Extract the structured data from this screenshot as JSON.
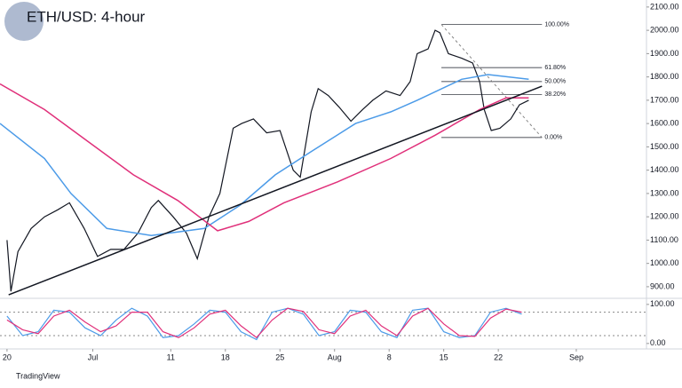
{
  "chart_data": {
    "type": "line",
    "title": "ETH/USD: 4-hour",
    "footer": "TradingView",
    "xlim": [
      -0.9,
      82
    ],
    "ylim": [
      854,
      2130
    ],
    "xticks": [
      {
        "value": 0,
        "label": "20"
      },
      {
        "value": 11,
        "label": "Jul"
      },
      {
        "value": 21,
        "label": "11"
      },
      {
        "value": 28,
        "label": "18"
      },
      {
        "value": 35,
        "label": "25"
      },
      {
        "value": 42,
        "label": "Aug"
      },
      {
        "value": 49,
        "label": "8"
      },
      {
        "value": 56,
        "label": "15"
      },
      {
        "value": 63,
        "label": "22"
      },
      {
        "value": 73,
        "label": "Sep"
      }
    ],
    "yticks": [
      {
        "value": 2100,
        "label": "2100.00"
      },
      {
        "value": 2000,
        "label": "2000.00"
      },
      {
        "value": 1900,
        "label": "1900.00"
      },
      {
        "value": 1800,
        "label": "1800.00"
      },
      {
        "value": 1700,
        "label": "1700.00"
      },
      {
        "value": 1600,
        "label": "1600.00"
      },
      {
        "value": 1500,
        "label": "1500.00"
      },
      {
        "value": 1400,
        "label": "1400.00"
      },
      {
        "value": 1300,
        "label": "1300.00"
      },
      {
        "value": 1200,
        "label": "1200.00"
      },
      {
        "value": 1100,
        "label": "1100.00"
      },
      {
        "value": 1000,
        "label": "1000.00"
      },
      {
        "value": 900,
        "label": "900.00"
      }
    ],
    "series": [
      {
        "color": "#131722",
        "x": [
          0.0,
          0.5,
          1.4,
          3.1,
          4.8,
          6.5,
          8.0,
          9.9,
          11.6,
          13.3,
          15.0,
          16.8,
          18.5,
          19.4,
          21.3,
          23.0,
          24.4,
          25.9,
          27.3,
          29.0,
          30.1,
          31.6,
          33.3,
          35.0,
          36.7,
          37.6,
          39.0,
          39.9,
          41.2,
          42.6,
          44.1,
          45.6,
          46.9,
          48.6,
          50.4,
          51.7,
          52.6,
          54.0,
          54.9,
          55.5,
          56.6,
          58.3,
          59.7,
          60.6,
          61.2,
          62.1,
          63.2,
          64.6,
          65.7,
          66.9
        ],
        "values": [
          1100,
          880,
          1050,
          1150,
          1200,
          1230,
          1260,
          1150,
          1030,
          1060,
          1060,
          1130,
          1240,
          1270,
          1200,
          1130,
          1020,
          1200,
          1300,
          1580,
          1600,
          1620,
          1560,
          1570,
          1400,
          1370,
          1650,
          1750,
          1720,
          1670,
          1610,
          1660,
          1700,
          1740,
          1720,
          1780,
          1900,
          1920,
          2000,
          1990,
          1900,
          1880,
          1860,
          1780,
          1660,
          1570,
          1580,
          1620,
          1680,
          1700
        ]
      },
      {
        "color": "#4c9be8",
        "x": [
          -0.9,
          4.8,
          8.2,
          12.8,
          18.5,
          25.3,
          29.9,
          34.4,
          39.0,
          44.7,
          49.2,
          52.6,
          58.3,
          61.7,
          66.9
        ],
        "values": [
          1600,
          1450,
          1300,
          1150,
          1120,
          1150,
          1250,
          1380,
          1480,
          1600,
          1650,
          1700,
          1790,
          1810,
          1790
        ]
      },
      {
        "color": "#e0307a",
        "x": [
          -0.9,
          4.8,
          10.5,
          16.2,
          21.9,
          27.0,
          31.0,
          35.5,
          42.4,
          49.2,
          54.9,
          60.6,
          64.0,
          66.9
        ],
        "values": [
          1770,
          1660,
          1520,
          1380,
          1270,
          1140,
          1180,
          1260,
          1350,
          1450,
          1550,
          1660,
          1710,
          1710
        ]
      }
    ],
    "trendline": {
      "x": [
        0.2,
        68.6
      ],
      "y": [
        865,
        1760
      ],
      "color": "#131722"
    },
    "fib": {
      "x": [
        55.7,
        68.6
      ],
      "levels": [
        2025,
        1840,
        1780,
        1725,
        1540
      ],
      "labels": [
        "100.00%",
        "61.80%",
        "50.00%",
        "38.20%",
        "0.00%"
      ]
    },
    "oscillator": {
      "ylim": [
        -14,
        111
      ],
      "yticks": [
        {
          "value": 100,
          "label": "100.00"
        },
        {
          "value": 0,
          "label": "0.00"
        }
      ],
      "bands": [
        80,
        20
      ],
      "x": [
        0,
        2,
        4,
        6,
        8,
        10,
        12,
        14,
        16,
        18,
        20,
        22,
        24,
        26,
        28,
        30,
        32,
        34,
        36,
        38,
        40,
        42,
        44,
        46,
        48,
        50,
        52,
        54,
        56,
        58,
        60,
        62,
        64,
        66
      ],
      "series": [
        {
          "color": "#4c9be8",
          "values": [
            70,
            20,
            30,
            85,
            80,
            40,
            20,
            60,
            90,
            70,
            15,
            20,
            50,
            85,
            80,
            30,
            10,
            80,
            90,
            75,
            20,
            30,
            85,
            80,
            30,
            15,
            85,
            90,
            30,
            15,
            20,
            80,
            90,
            75
          ]
        },
        {
          "color": "#e0307a",
          "values": [
            60,
            35,
            25,
            70,
            85,
            55,
            30,
            45,
            80,
            80,
            30,
            15,
            40,
            75,
            85,
            45,
            15,
            60,
            90,
            82,
            35,
            25,
            70,
            85,
            45,
            20,
            70,
            90,
            50,
            20,
            18,
            65,
            88,
            80
          ]
        }
      ]
    }
  }
}
